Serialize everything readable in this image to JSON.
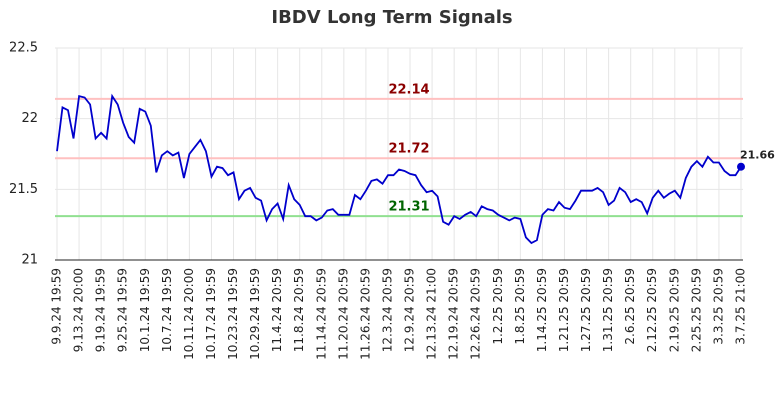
{
  "chart_data": {
    "type": "line",
    "title": "IBDV Long Term Signals",
    "categories": [
      "9.9.24 19:59",
      null,
      null,
      null,
      "9.13.24 20:00",
      null,
      null,
      null,
      "9.19.24 19:59",
      null,
      null,
      null,
      "9.25.24 19:59",
      null,
      null,
      null,
      "10.1.24 19:59",
      null,
      null,
      null,
      "10.7.24 19:59",
      null,
      null,
      null,
      "10.11.24 20:00",
      null,
      null,
      null,
      "10.17.24 19:59",
      null,
      null,
      null,
      "10.23.24 19:59",
      null,
      null,
      null,
      "10.29.24 19:59",
      null,
      null,
      null,
      "11.4.24 20:59",
      null,
      null,
      null,
      "11.8.24 20:59",
      null,
      null,
      null,
      "11.14.24 20:59",
      null,
      null,
      null,
      "11.20.24 20:59",
      null,
      null,
      null,
      "11.26.24 20:59",
      null,
      null,
      null,
      "12.3.24 20:59",
      null,
      null,
      null,
      "12.9.24 20:59",
      null,
      null,
      null,
      "12.13.24 21:00",
      null,
      null,
      null,
      "12.19.24 20:59",
      null,
      null,
      null,
      "12.26.24 20:59",
      null,
      null,
      null,
      "1.2.25 20:59",
      null,
      null,
      null,
      "1.8.25 20:59",
      null,
      null,
      null,
      "1.14.25 20:59",
      null,
      null,
      null,
      "1.21.25 20:59",
      null,
      null,
      null,
      "1.27.25 20:59",
      null,
      null,
      null,
      "1.31.25 20:59",
      null,
      null,
      null,
      "2.6.25 20:59",
      null,
      null,
      null,
      "2.12.25 20:59",
      null,
      null,
      null,
      "2.19.25 20:59",
      null,
      null,
      null,
      "2.25.25 20:59",
      null,
      null,
      null,
      "3.3.25 20:59",
      null,
      null,
      null,
      "3.7.25 21:00"
    ],
    "values": [
      21.77,
      22.08,
      22.06,
      21.86,
      22.16,
      22.15,
      22.1,
      21.86,
      21.9,
      21.86,
      22.16,
      22.1,
      21.97,
      21.87,
      21.83,
      22.07,
      22.05,
      21.95,
      21.62,
      21.74,
      21.77,
      21.74,
      21.76,
      21.58,
      21.75,
      21.8,
      21.85,
      21.77,
      21.59,
      21.66,
      21.65,
      21.6,
      21.62,
      21.43,
      21.49,
      21.51,
      21.44,
      21.42,
      21.28,
      21.36,
      21.4,
      21.29,
      21.53,
      21.43,
      21.39,
      21.31,
      21.31,
      21.28,
      21.3,
      21.35,
      21.36,
      21.32,
      21.32,
      21.32,
      21.46,
      21.43,
      21.49,
      21.56,
      21.57,
      21.54,
      21.6,
      21.6,
      21.64,
      21.63,
      21.61,
      21.6,
      21.53,
      21.48,
      21.49,
      21.45,
      21.27,
      21.25,
      21.31,
      21.29,
      21.32,
      21.34,
      21.31,
      21.38,
      21.36,
      21.35,
      21.32,
      21.3,
      21.28,
      21.3,
      21.29,
      21.16,
      21.12,
      21.14,
      21.32,
      21.36,
      21.35,
      21.41,
      21.37,
      21.36,
      21.42,
      21.49,
      21.49,
      21.49,
      21.51,
      21.48,
      21.39,
      21.42,
      21.51,
      21.48,
      21.41,
      21.43,
      21.41,
      21.33,
      21.44,
      21.49,
      21.44,
      21.47,
      21.49,
      21.44,
      21.58,
      21.66,
      21.7,
      21.66,
      21.73,
      21.69,
      21.69,
      21.63,
      21.6,
      21.6,
      21.66
    ],
    "color": "#0000cc",
    "ylim": [
      21,
      22.5
    ],
    "yticks": [
      21,
      21.5,
      22,
      22.5
    ],
    "grid": true,
    "hlines": [
      {
        "value": 22.14,
        "color": "#ffc0c0",
        "label_color": "#8b0000"
      },
      {
        "value": 21.72,
        "color": "#ffc0c0",
        "label_color": "#8b0000"
      },
      {
        "value": 21.31,
        "color": "#90e090",
        "label_color": "#006400"
      }
    ]
  }
}
